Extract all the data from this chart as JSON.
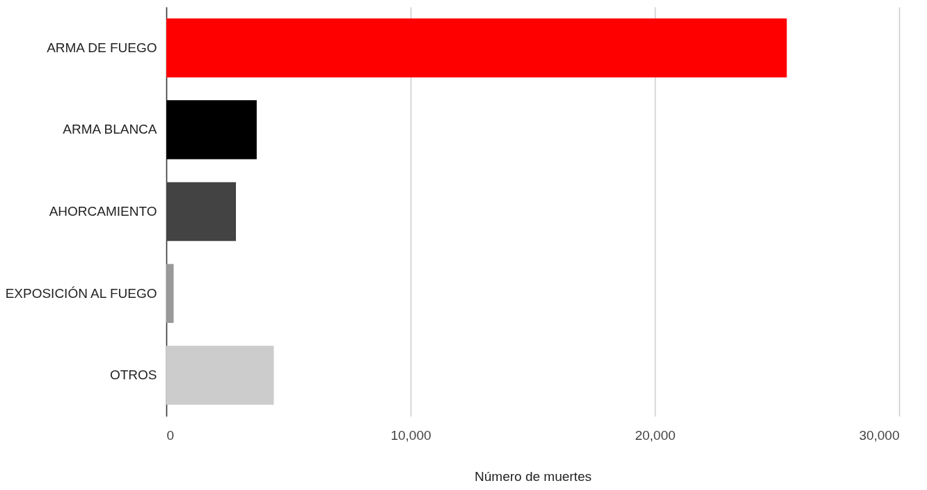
{
  "chart_data": {
    "type": "bar",
    "orientation": "horizontal",
    "xlabel": "Número de muertes",
    "categories": [
      "ARMA DE FUEGO",
      "ARMA BLANCA",
      "AHORCAMIENTO",
      "EXPOSICIÓN AL FUEGO",
      "OTROS"
    ],
    "values": [
      25400,
      3700,
      2850,
      300,
      4400
    ],
    "colors": [
      "#ff0000",
      "#000000",
      "#434343",
      "#999999",
      "#cccccc"
    ],
    "xlim": [
      0,
      30000
    ],
    "xticks": [
      0,
      {
        "value": 10000,
        "label": "10,000"
      },
      {
        "value": 20000,
        "label": "20,000"
      },
      {
        "value": 30000,
        "label": "30,000"
      }
    ],
    "grid": "x"
  }
}
